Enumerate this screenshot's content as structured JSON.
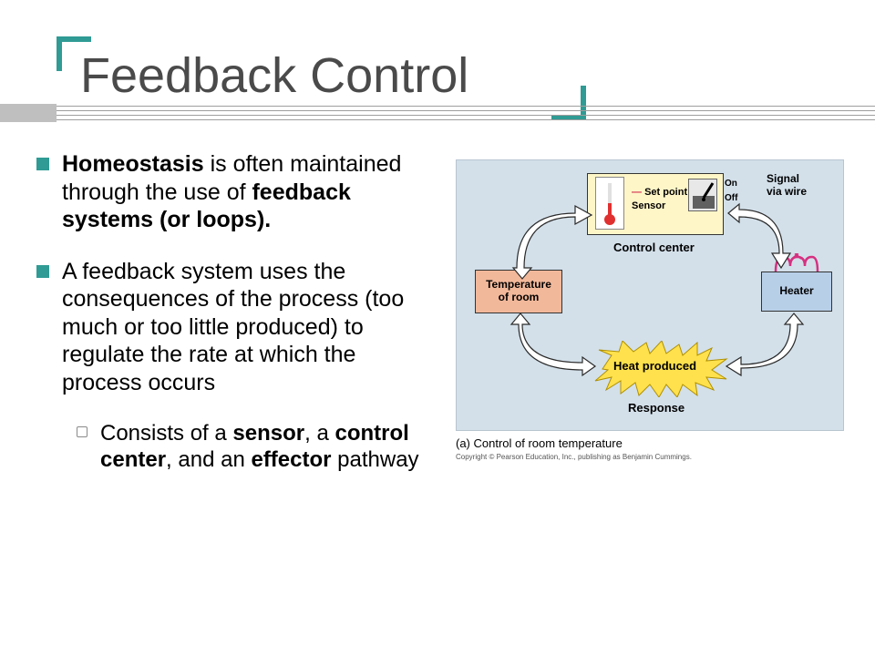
{
  "title": "Feedback Control",
  "accent_color": "#2f9b94",
  "bullet_color": "#2f9b94",
  "bullets": [
    {
      "segments": [
        {
          "t": "Homeostasis",
          "bold": true
        },
        {
          "t": " is often maintained through the use of ",
          "bold": false
        },
        {
          "t": "feedback systems (or loops).",
          "bold": true
        }
      ]
    },
    {
      "segments": [
        {
          "t": "A feedback system uses the consequences of the process (too much or too little produced) to regulate the rate at which the process occurs",
          "bold": false
        }
      ],
      "sub": {
        "segments": [
          {
            "t": "Consists of a ",
            "bold": false
          },
          {
            "t": "sensor",
            "bold": true
          },
          {
            "t": ", a ",
            "bold": false
          },
          {
            "t": "control center",
            "bold": true
          },
          {
            "t": ", and an ",
            "bold": false
          },
          {
            "t": "effector",
            "bold": true
          },
          {
            "t": " pathway",
            "bold": false
          }
        ]
      }
    }
  ],
  "diagram": {
    "background": "#d3e0ea",
    "control_center": {
      "label": "Control center",
      "set_point": "Set point",
      "sensor": "Sensor",
      "on": "On",
      "off": "Off"
    },
    "sensor_node": "Temperature\nof room",
    "heater_node": "Heater",
    "response_node": "Heat produced",
    "response_label": "Response",
    "signal_label": "Signal\nvia wire",
    "burst_fill": "#ffe14d",
    "burst_stroke": "#b09000",
    "arrow_fill": "#ffffff",
    "arrow_stroke": "#2a2a2a",
    "heater_coil_color": "#d63080"
  },
  "caption": "(a) Control of room temperature",
  "copyright": "Copyright © Pearson Education, Inc., publishing as Benjamin Cummings."
}
